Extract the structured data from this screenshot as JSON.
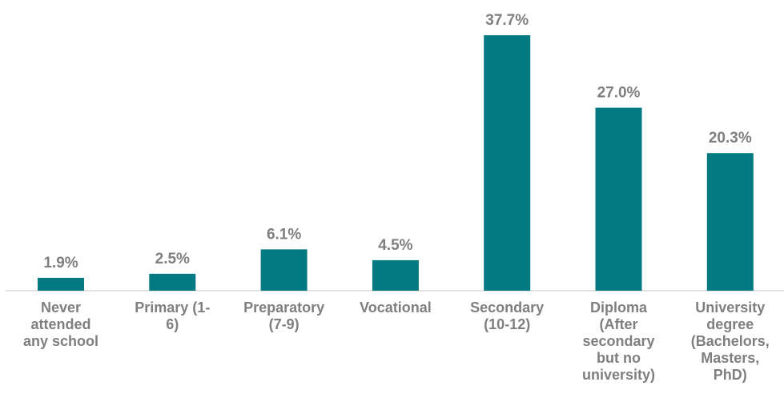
{
  "chart_data": {
    "type": "bar",
    "categories": [
      "Never attended any school",
      "Primary (1-6)",
      "Preparatory (7-9)",
      "Vocational",
      "Secondary (10-12)",
      "Diploma (After secondary but no university)",
      "University degree (Bachelors, Masters, PhD)"
    ],
    "values": [
      1.9,
      2.5,
      6.1,
      4.5,
      37.7,
      27.0,
      20.3
    ],
    "value_labels": [
      "1.9%",
      "2.5%",
      "6.1%",
      "4.5%",
      "37.7%",
      "27.0%",
      "20.3%"
    ],
    "color": "#037a82"
  }
}
